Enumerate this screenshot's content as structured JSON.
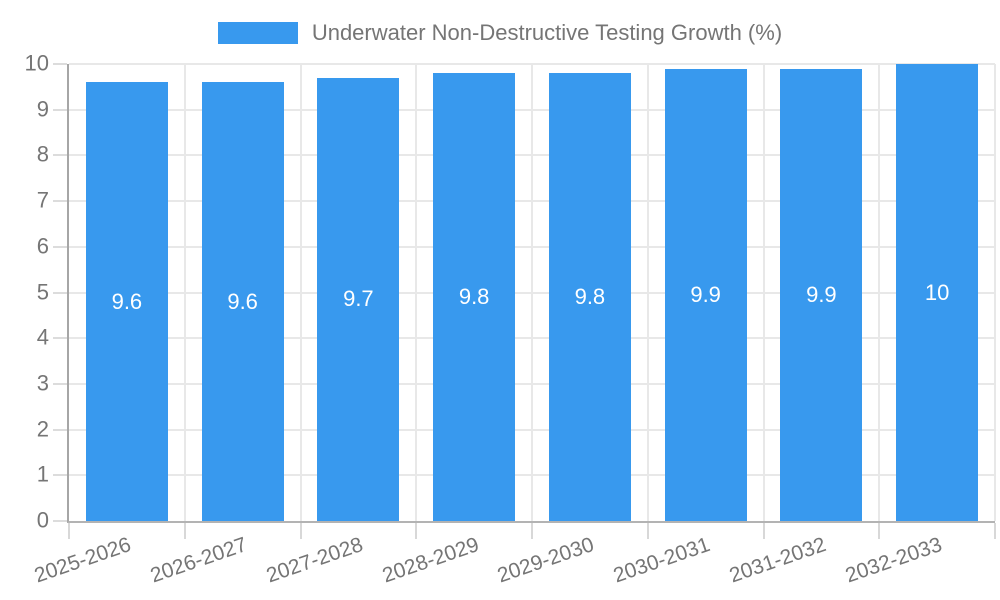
{
  "chart_data": {
    "type": "bar",
    "title": "Underwater Non-Destructive Testing Growth (%)",
    "categories": [
      "2025-2026",
      "2026-2027",
      "2027-2028",
      "2028-2029",
      "2029-2030",
      "2030-2031",
      "2031-2032",
      "2032-2033"
    ],
    "values": [
      9.6,
      9.6,
      9.7,
      9.8,
      9.8,
      9.9,
      9.9,
      10
    ],
    "xlabel": "",
    "ylabel": "",
    "ylim": [
      0,
      10
    ],
    "yticks": [
      0,
      1,
      2,
      3,
      4,
      5,
      6,
      7,
      8,
      9,
      10
    ],
    "grid": true,
    "legend_position": "top-center",
    "bar_labels_inside": true,
    "bar_color": "#3899EE",
    "bar_label_color": "#FFFFFF",
    "axis_text_color": "#757575",
    "gridline_color": "#E8E8E8"
  }
}
